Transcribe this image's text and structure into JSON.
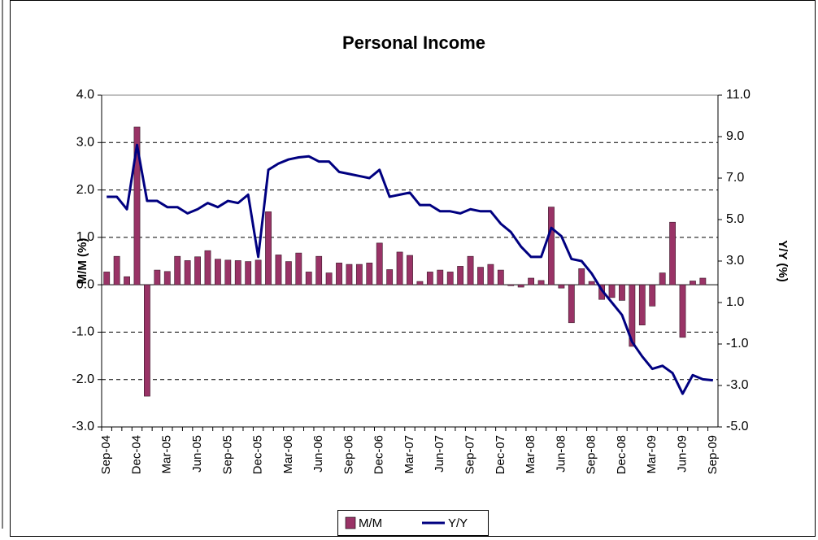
{
  "chart_data": {
    "type": "bar",
    "title": "Personal Income",
    "y_label": "M/M (%)",
    "y2_label": "Y/Y (%)",
    "categories": [
      "Sep-04",
      null,
      null,
      "Dec-04",
      null,
      null,
      "Mar-05",
      null,
      null,
      "Jun-05",
      null,
      null,
      "Sep-05",
      null,
      null,
      "Dec-05",
      null,
      null,
      "Mar-06",
      null,
      null,
      "Jun-06",
      null,
      null,
      "Sep-06",
      null,
      null,
      "Dec-06",
      null,
      null,
      "Mar-07",
      null,
      null,
      "Jun-07",
      null,
      null,
      "Sep-07",
      null,
      null,
      "Dec-07",
      null,
      null,
      "Mar-08",
      null,
      null,
      "Jun-08",
      null,
      null,
      "Sep-08",
      null,
      null,
      "Dec-08",
      null,
      null,
      "Mar-09",
      null,
      null,
      "Jun-09",
      null,
      null,
      "Sep-09"
    ],
    "series": [
      {
        "name": "M/M",
        "type": "bar",
        "color": "#993366",
        "values": [
          0.27,
          0.6,
          0.17,
          3.33,
          -2.35,
          0.31,
          0.28,
          0.6,
          0.51,
          0.59,
          0.72,
          0.54,
          0.52,
          0.51,
          0.49,
          0.52,
          1.54,
          0.63,
          0.49,
          0.67,
          0.27,
          0.6,
          0.25,
          0.46,
          0.43,
          0.43,
          0.46,
          0.88,
          0.32,
          0.69,
          0.62,
          0.07,
          0.27,
          0.31,
          0.27,
          0.39,
          0.6,
          0.37,
          0.43,
          0.31,
          -0.02,
          -0.05,
          0.14,
          0.09,
          1.64,
          -0.07,
          -0.8,
          0.34,
          0.07,
          -0.31,
          -0.27,
          -0.33,
          -1.3,
          -0.85,
          -0.45,
          0.25,
          1.32,
          -1.11,
          0.08,
          0.14,
          null
        ]
      },
      {
        "name": "Y/Y",
        "type": "line",
        "axis": "y2",
        "color": "#000080",
        "values": [
          6.1,
          6.1,
          5.5,
          8.6,
          5.9,
          5.9,
          5.6,
          5.6,
          5.3,
          5.5,
          5.8,
          5.6,
          5.9,
          5.8,
          6.2,
          3.2,
          7.4,
          7.7,
          7.9,
          8.0,
          8.05,
          7.8,
          7.8,
          7.3,
          7.2,
          7.1,
          7.0,
          7.4,
          6.1,
          6.2,
          6.3,
          5.7,
          5.7,
          5.4,
          5.4,
          5.3,
          5.5,
          5.4,
          5.4,
          4.8,
          4.4,
          3.7,
          3.2,
          3.2,
          4.6,
          4.2,
          3.1,
          3.0,
          2.4,
          1.6,
          1.0,
          0.4,
          -0.9,
          -1.6,
          -2.2,
          -2.05,
          -2.4,
          -3.4,
          -2.5,
          -2.7,
          -2.75
        ]
      }
    ],
    "ylim": [
      -3,
      4
    ],
    "yticks": [
      {
        "value": -3,
        "label": "-3.0"
      },
      {
        "value": -2,
        "label": "-2.0"
      },
      {
        "value": -1,
        "label": "-1.0"
      },
      {
        "value": 0,
        "label": "0.0"
      },
      {
        "value": 1,
        "label": "1.0"
      },
      {
        "value": 2,
        "label": "2.0"
      },
      {
        "value": 3,
        "label": "3.0"
      },
      {
        "value": 4,
        "label": "4.0"
      }
    ],
    "y2lim": [
      -5,
      11
    ],
    "y2ticks": [
      {
        "value": -5,
        "label": "-5.0"
      },
      {
        "value": -3,
        "label": "-3.0"
      },
      {
        "value": -1,
        "label": "-1.0"
      },
      {
        "value": 1,
        "label": "1.0"
      },
      {
        "value": 3,
        "label": "3.0"
      },
      {
        "value": 5,
        "label": "5.0"
      },
      {
        "value": 7,
        "label": "7.0"
      },
      {
        "value": 9,
        "label": "9.0"
      },
      {
        "value": 11,
        "label": "11.0"
      }
    ],
    "grid": true,
    "legend": "bottom"
  }
}
